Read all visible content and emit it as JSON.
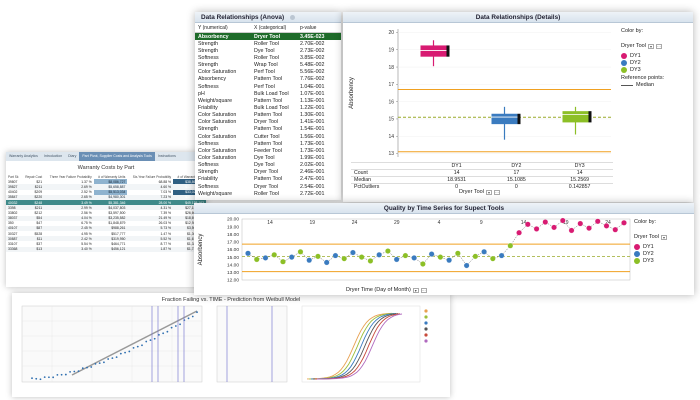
{
  "warranty": {
    "tabs": [
      "Warranty Analytics",
      "Introduction",
      "Diary",
      "Part Pivot, Supplier Costs and Analysis Tools",
      "Instructions"
    ],
    "active_tab": 3,
    "title": "Warranty Costs by Part",
    "headers": [
      "Part Sk",
      "Repair Cost",
      "Three Year Failure Probability",
      "# of Warranty Units",
      "Six-Year Failure Probability",
      "# of Warranty Cost"
    ],
    "rows": [
      [
        "39807",
        "$21",
        "1.37 %",
        "$8,086,727",
        "68.88 %",
        "$38,868,080"
      ],
      [
        "39827",
        "$211",
        "2.69 %",
        "$5,658,887",
        "4.60 %",
        "$33,023,336"
      ],
      [
        "40402",
        "$209",
        "2.52 %",
        "$5,513,034",
        "7.03 %",
        "$33,022,400"
      ],
      [
        "35847",
        "$220",
        "2.65 %",
        "$4,980,301",
        "7.23 %",
        "$30,987,001"
      ],
      [
        "40032",
        "$248",
        "3.49 %",
        "$5,381,346",
        "28.00 %",
        "$45,138,163"
      ],
      [
        "3398",
        "$211",
        "2.99 %",
        "$4,037,803",
        "4.31 %",
        "$27,150,757"
      ],
      [
        "33802",
        "$212",
        "2.56 %",
        "$3,597,500",
        "7.39 %",
        "$26,602,074"
      ],
      [
        "38037",
        "$54",
        "4.04 %",
        "$3,235,582",
        "21.49 %",
        "$18,698,989"
      ],
      [
        "350",
        "$47",
        "6.75 %",
        "$1,848,879",
        "26.03 %",
        "$12,980,548"
      ],
      [
        "40107",
        "$87",
        "2.45 %",
        "$988,261",
        "5.73 %",
        "$3,507,851"
      ],
      [
        "30327",
        "$528",
        "4.95 %",
        "$517,777",
        "1.47 %",
        "$1,364,831"
      ],
      [
        "30887",
        "$11",
        "2.42 %",
        "$319,950",
        "5.52 %",
        "$1,679,953"
      ],
      [
        "33107",
        "$37",
        "5.54 %",
        "$464,771",
        "8.77 %",
        "$1,326,857"
      ],
      [
        "33368",
        "$13",
        "3.40 %",
        "$456,121",
        "1.87 %",
        "$1,728,157"
      ]
    ],
    "selected_row": 4
  },
  "fraction": {
    "title": "Fraction Failing vs. TIME - Prediction from Weibull Model"
  },
  "anova": {
    "title": "Data Relationships (Anova)",
    "headers": [
      "Y (numerical)",
      "X (categorical)",
      "p-value"
    ],
    "rows": [
      [
        "Absorbency",
        "Dryer Tool",
        "3.45E-023"
      ],
      [
        "Strength",
        "Roller Tool",
        "2.70E-002"
      ],
      [
        "Strength",
        "Dye Tool",
        "2.73E-002"
      ],
      [
        "Softness",
        "Roller Tool",
        "3.85E-002"
      ],
      [
        "Strength",
        "Wrap Tool",
        "5.48E-002"
      ],
      [
        "Color Saturation",
        "Perf Tool",
        "5.56E-002"
      ],
      [
        "Absorbency",
        "Pattern Tool",
        "7.76E-002"
      ],
      [
        "Softness",
        "Perf Tool",
        "1.04E-001"
      ],
      [
        "pH",
        "Bulk Load Tool",
        "1.07E-001"
      ],
      [
        "Weight/square",
        "Pattern Tool",
        "1.13E-001"
      ],
      [
        "Friability",
        "Bulk Load Tool",
        "1.22E-001"
      ],
      [
        "Color Saturation",
        "Pattern Tool",
        "1.30E-001"
      ],
      [
        "Color Saturation",
        "Dryer Tool",
        "1.41E-001"
      ],
      [
        "Strength",
        "Pattern Tool",
        "1.54E-001"
      ],
      [
        "Color Saturation",
        "Cutter Tool",
        "1.56E-001"
      ],
      [
        "Softness",
        "Pattern Tool",
        "1.73E-001"
      ],
      [
        "Color Saturation",
        "Feeder Tool",
        "1.73E-001"
      ],
      [
        "Color Saturation",
        "Dye Tool",
        "1.99E-001"
      ],
      [
        "Softness",
        "Dye Tool",
        "2.02E-001"
      ],
      [
        "Strength",
        "Dryer Tool",
        "2.46E-001"
      ],
      [
        "Friability",
        "Pattern Tool",
        "2.47E-001"
      ],
      [
        "Softness",
        "Dryer Tool",
        "2.54E-001"
      ],
      [
        "Weight/square",
        "Roller Tool",
        "2.72E-001"
      ]
    ],
    "selected_row": 0
  },
  "details": {
    "title": "Data Relationships (Details)",
    "ylabel": "Absorbency",
    "color_by_label": "Color by:",
    "color_by_value": "Dryer Tool",
    "reference_label": "Reference points:",
    "median_label": "Median",
    "xaxis_selector": "Dryer Tool",
    "stats_rows": [
      {
        "label": "Count",
        "values": [
          "14",
          "17",
          "14"
        ]
      },
      {
        "label": "Median",
        "values": [
          "18.9531",
          "15.1085",
          "15.2569"
        ]
      },
      {
        "label": "PctOutliers",
        "values": [
          "0",
          "0",
          "0.142857"
        ]
      }
    ]
  },
  "quality": {
    "title": "Quality by Time Series for Supect Tools",
    "ylabel": "Absorbency",
    "xlabel": "Dryer Time (Day of Month)",
    "color_by_label": "Color by:",
    "color_by_value": "Dryer Tool"
  },
  "colors": {
    "dy1": "#d81b72",
    "dy2": "#3a7bbf",
    "dy3": "#8cbf26",
    "orange": "#f0a020",
    "median": "#9aaa2a"
  },
  "chart_data": [
    {
      "type": "box",
      "title": "Data Relationships (Details)",
      "ylabel": "Absorbency",
      "xlabel": "Dryer Tool",
      "categories": [
        "DY1",
        "DY2",
        "DY3"
      ],
      "ylim": [
        12.8,
        20.2
      ],
      "yticks": [
        13,
        14,
        15,
        16,
        17,
        18,
        19,
        20
      ],
      "series": [
        {
          "name": "DY1",
          "q1": 18.6,
          "median": 18.9531,
          "q3": 19.25,
          "whisker_low": 18.05,
          "whisker_high": 19.55
        },
        {
          "name": "DY2",
          "q1": 14.7,
          "median": 15.1085,
          "q3": 15.3,
          "whisker_low": 13.8,
          "whisker_high": 15.7
        },
        {
          "name": "DY3",
          "q1": 14.8,
          "median": 15.2569,
          "q3": 15.45,
          "whisker_low": 14.1,
          "whisker_high": 15.7
        }
      ],
      "reference_lines": [
        16.7,
        13.1
      ],
      "median_line": 15.1
    },
    {
      "type": "line",
      "title": "Quality by Time Series for Supect Tools",
      "ylabel": "Absorbency",
      "xlabel": "Dryer Time (Day of Month)",
      "xticks": [
        "14",
        "19",
        "24",
        "29",
        "4",
        "9",
        "14",
        "19",
        "24"
      ],
      "ylim": [
        12,
        20
      ],
      "yticks": [
        12,
        13,
        14,
        15,
        16,
        17,
        18,
        19,
        20
      ],
      "reference_lines": [
        16.7,
        13.1
      ],
      "median_line": 15.1,
      "points": [
        {
          "c": "DY2",
          "y": 15.5
        },
        {
          "c": "DY3",
          "y": 14.7
        },
        {
          "c": "DY2",
          "y": 14.9
        },
        {
          "c": "DY3",
          "y": 15.3
        },
        {
          "c": "DY3",
          "y": 14.4
        },
        {
          "c": "DY2",
          "y": 15.0
        },
        {
          "c": "DY3",
          "y": 15.7
        },
        {
          "c": "DY2",
          "y": 14.6
        },
        {
          "c": "DY3",
          "y": 15.1
        },
        {
          "c": "DY2",
          "y": 14.3
        },
        {
          "c": "DY2",
          "y": 15.2
        },
        {
          "c": "DY3",
          "y": 14.8
        },
        {
          "c": "DY2",
          "y": 15.6
        },
        {
          "c": "DY3",
          "y": 15.0
        },
        {
          "c": "DY3",
          "y": 14.5
        },
        {
          "c": "DY2",
          "y": 15.3
        },
        {
          "c": "DY3",
          "y": 15.8
        },
        {
          "c": "DY2",
          "y": 14.7
        },
        {
          "c": "DY3",
          "y": 15.2
        },
        {
          "c": "DY2",
          "y": 14.9
        },
        {
          "c": "DY3",
          "y": 14.1
        },
        {
          "c": "DY2",
          "y": 15.4
        },
        {
          "c": "DY3",
          "y": 15.0
        },
        {
          "c": "DY2",
          "y": 14.6
        },
        {
          "c": "DY3",
          "y": 15.5
        },
        {
          "c": "DY2",
          "y": 13.9
        },
        {
          "c": "DY3",
          "y": 15.1
        },
        {
          "c": "DY2",
          "y": 15.7
        },
        {
          "c": "DY3",
          "y": 14.8
        },
        {
          "c": "DY2",
          "y": 15.2
        },
        {
          "c": "DY3",
          "y": 16.5
        },
        {
          "c": "DY1",
          "y": 18.2
        },
        {
          "c": "DY1",
          "y": 19.3
        },
        {
          "c": "DY1",
          "y": 18.7
        },
        {
          "c": "DY1",
          "y": 19.6
        },
        {
          "c": "DY1",
          "y": 18.9
        },
        {
          "c": "DY1",
          "y": 19.8
        },
        {
          "c": "DY1",
          "y": 18.5
        },
        {
          "c": "DY1",
          "y": 19.4
        },
        {
          "c": "DY1",
          "y": 18.8
        },
        {
          "c": "DY1",
          "y": 19.7
        },
        {
          "c": "DY1",
          "y": 19.1
        },
        {
          "c": "DY1",
          "y": 18.6
        },
        {
          "c": "DY1",
          "y": 19.5
        }
      ]
    }
  ]
}
